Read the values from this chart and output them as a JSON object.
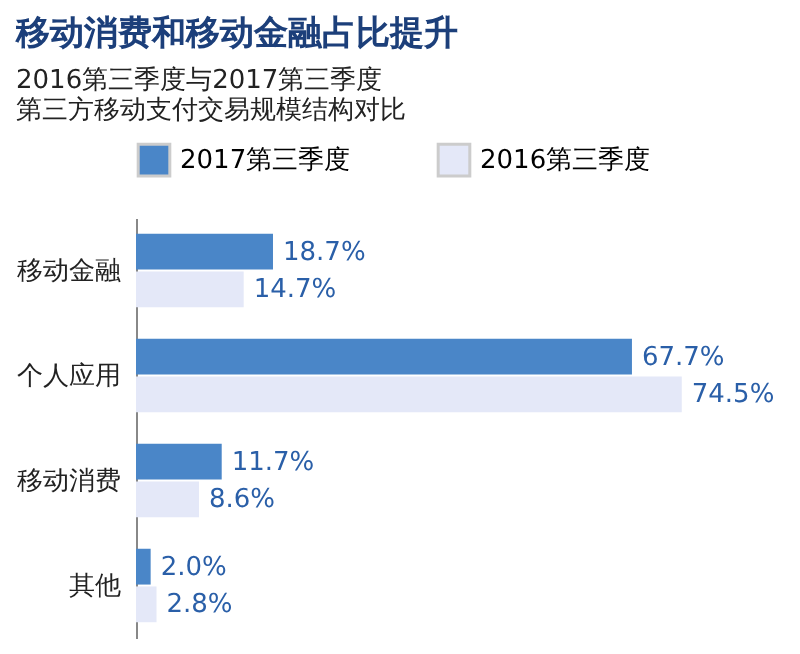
{
  "chart_data": {
    "type": "bar",
    "orientation": "horizontal",
    "title": "移动消费和移动金融占比提升",
    "subtitle": "2016第三季度与2017第三季度",
    "annotations": [
      "第三方移动支付交易规模结构对比"
    ],
    "categories": [
      "移动金融",
      "个人应用",
      "移动消费",
      "其他"
    ],
    "series": [
      {
        "name": "2017第三季度",
        "color": "#4a86c8",
        "values": [
          18.7,
          67.7,
          11.7,
          2.0
        ],
        "value_labels": [
          "18.7%",
          "67.7%",
          "11.7%",
          "2.0%"
        ]
      },
      {
        "name": "2016第三季度",
        "color": "#e4e8f8",
        "values": [
          14.7,
          74.5,
          8.6,
          2.8
        ],
        "value_labels": [
          "14.7%",
          "74.5%",
          "8.6%",
          "2.8%"
        ]
      }
    ],
    "legend": "top"
  }
}
